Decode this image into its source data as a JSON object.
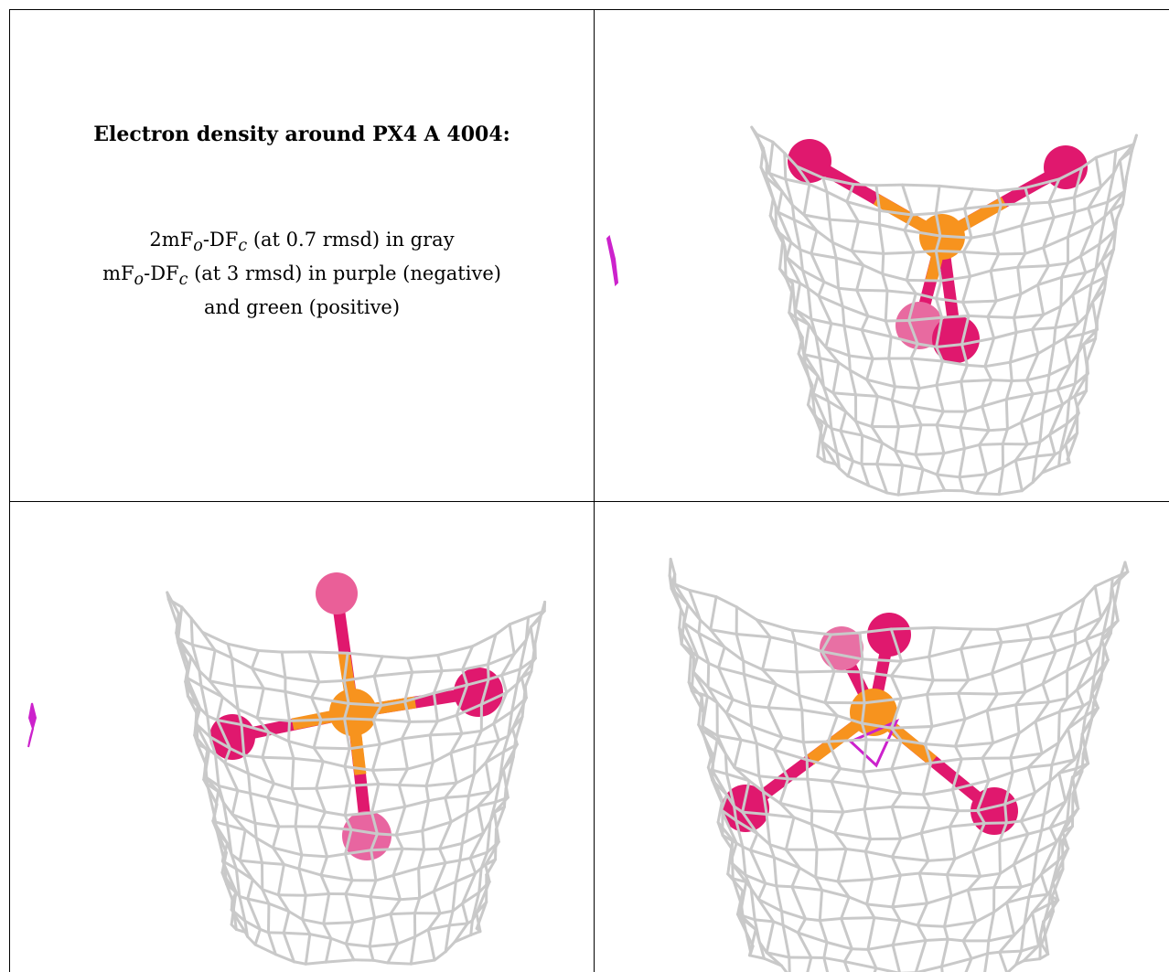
{
  "text_panel": {
    "title": "Electron density around PX4 A 4004:",
    "line1": {
      "pre": "2mF",
      "sub1": "o",
      "mid": "-DF",
      "sub2": "c",
      "post": " (at 0.7 rmsd) in gray"
    },
    "line2": {
      "pre": "mF",
      "sub1": "o",
      "mid": "-DF",
      "sub2": "c",
      "post": " (at 3 rmsd) in purple (negative)"
    },
    "line3": "and green (positive)"
  },
  "colors": {
    "mesh": "#c9c9c9",
    "mesh_dark": "#9a9a9a",
    "phosphorus": "#f7931e",
    "oxygen": "#e0186e",
    "negative_density": "#cc22cc"
  }
}
